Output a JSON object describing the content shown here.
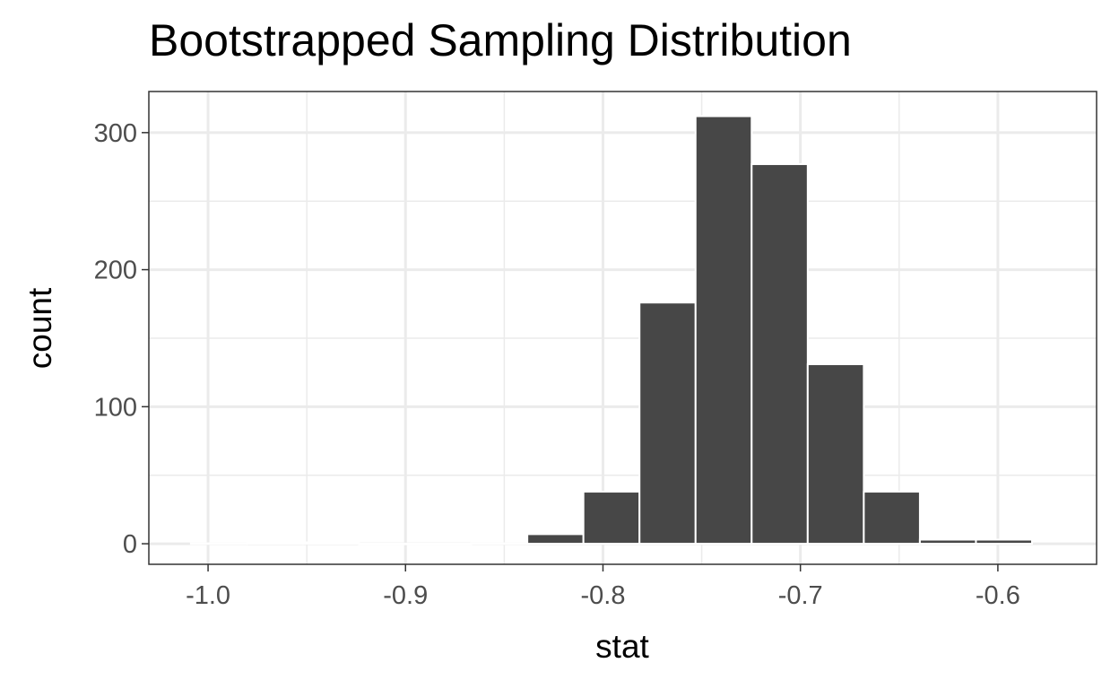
{
  "chart_data": {
    "type": "bar",
    "title": "Bootstrapped Sampling Distribution",
    "xlabel": "stat",
    "ylabel": "count",
    "xlim": [
      -1.03,
      -0.55
    ],
    "ylim": [
      -15,
      330
    ],
    "x_ticks": [
      -1.0,
      -0.9,
      -0.8,
      -0.7,
      -0.6
    ],
    "x_tick_labels": [
      "-1.0",
      "-0.9",
      "-0.8",
      "-0.7",
      "-0.6"
    ],
    "y_ticks": [
      0,
      100,
      200,
      300
    ],
    "y_tick_labels": [
      "0",
      "100",
      "200",
      "300"
    ],
    "x_minor_ticks": [
      -0.95,
      -0.85,
      -0.75,
      -0.65
    ],
    "y_minor_ticks": [
      50,
      150,
      250
    ],
    "grid": true,
    "legend": "none",
    "bin_width": 0.0284,
    "bins": [
      {
        "x": -0.9945,
        "count": 0.3
      },
      {
        "x": -0.9661,
        "count": 1
      },
      {
        "x": -0.9377,
        "count": 1
      },
      {
        "x": -0.9093,
        "count": 0
      },
      {
        "x": -0.8809,
        "count": 0
      },
      {
        "x": -0.8525,
        "count": 0.3
      },
      {
        "x": -0.8241,
        "count": 7
      },
      {
        "x": -0.7957,
        "count": 38
      },
      {
        "x": -0.7673,
        "count": 176
      },
      {
        "x": -0.7389,
        "count": 312
      },
      {
        "x": -0.7105,
        "count": 277
      },
      {
        "x": -0.6821,
        "count": 131
      },
      {
        "x": -0.6537,
        "count": 38
      },
      {
        "x": -0.6253,
        "count": 3
      },
      {
        "x": -0.5969,
        "count": 3
      }
    ],
    "colors": {
      "bar_fill": "#474747",
      "bar_outline": "#ffffff",
      "grid": "#ebebeb",
      "panel_border": "#333333"
    }
  }
}
